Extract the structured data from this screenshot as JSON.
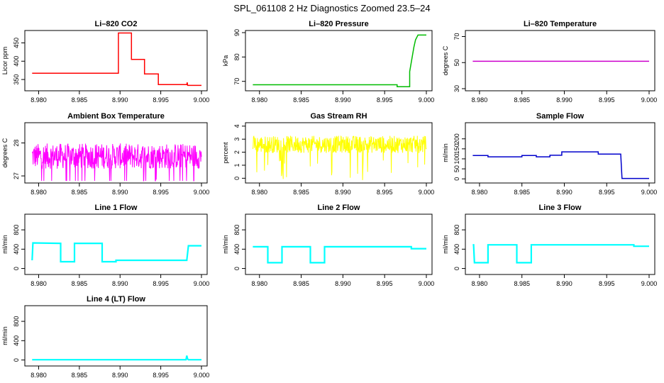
{
  "figure_title": "SPL_061108  2 Hz Diagnostics Zoomed 23.5–24",
  "chart_data": [
    {
      "type": "line",
      "title": "Li–820 CO2",
      "xlabel": "",
      "ylabel": "Licor ppm",
      "xlim": [
        8.979,
        9.0
      ],
      "ylim": [
        325,
        478
      ],
      "x_ticks": [
        "8.980",
        "8.985",
        "8.990",
        "8.995",
        "9.000"
      ],
      "y_ticks": [
        350,
        400,
        450
      ],
      "color": "#ff0000",
      "noise": 0,
      "series": [
        {
          "x": [
            8.9792,
            8.9898,
            8.9898,
            8.9914,
            8.9914,
            8.993,
            8.993,
            8.9947,
            8.9947,
            8.9982,
            8.99825,
            8.9983,
            9.0
          ],
          "y": [
            367,
            367,
            477,
            477,
            405,
            405,
            365,
            365,
            336,
            336,
            342,
            334,
            334
          ]
        }
      ]
    },
    {
      "type": "line",
      "title": "Li–820 Pressure",
      "xlabel": "",
      "ylabel": "kPa",
      "xlim": [
        8.979,
        9.0
      ],
      "ylim": [
        67,
        90
      ],
      "x_ticks": [
        "8.980",
        "8.985",
        "8.990",
        "8.995",
        "9.000"
      ],
      "y_ticks": [
        70,
        80,
        90
      ],
      "color": "#00bb00",
      "noise": 0,
      "series": [
        {
          "x": [
            8.9792,
            8.9965,
            8.9965,
            8.998,
            8.998,
            8.9985,
            8.9987,
            8.999,
            9.0
          ],
          "y": [
            68.6,
            68.6,
            67.8,
            67.8,
            74,
            84,
            87,
            89,
            89
          ]
        }
      ]
    },
    {
      "type": "line",
      "title": "Li–820 Temperature",
      "xlabel": "",
      "ylabel": "degrees C",
      "xlim": [
        8.979,
        9.0
      ],
      "ylim": [
        30,
        73
      ],
      "x_ticks": [
        "8.980",
        "8.985",
        "8.990",
        "8.995",
        "9.000"
      ],
      "y_ticks": [
        30,
        50,
        70
      ],
      "color": "#cc00cc",
      "noise": 0,
      "series": [
        {
          "x": [
            8.9792,
            9.0
          ],
          "y": [
            51,
            51
          ]
        }
      ]
    },
    {
      "type": "line",
      "title": "Ambient Box Temperature",
      "xlabel": "",
      "ylabel": "degrees C",
      "xlim": [
        8.979,
        9.0
      ],
      "ylim": [
        26.85,
        28.55
      ],
      "x_ticks": [
        "8.980",
        "8.985",
        "8.990",
        "8.995",
        "9.000"
      ],
      "y_ticks": [
        27.0,
        28.0
      ],
      "color": "#ff00ff",
      "noise": 0.7,
      "series": [
        {
          "x": [
            8.9792,
            9.0
          ],
          "y": [
            27.6,
            27.6
          ]
        }
      ]
    },
    {
      "type": "line",
      "title": "Gas Stream RH",
      "xlabel": "",
      "ylabel": "percent",
      "xlim": [
        8.979,
        9.0
      ],
      "ylim": [
        -0.2,
        4.1
      ],
      "x_ticks": [
        "8.980",
        "8.985",
        "8.990",
        "8.995",
        "9.000"
      ],
      "y_ticks": [
        0,
        1,
        2,
        3,
        4
      ],
      "color": "#ffff00",
      "noise": 1.2,
      "series": [
        {
          "x": [
            8.9792,
            9.0
          ],
          "y": [
            2.6,
            2.6
          ]
        }
      ]
    },
    {
      "type": "line",
      "title": "Sample Flow",
      "xlabel": "",
      "ylabel": "ml/min",
      "xlim": [
        8.979,
        9.0
      ],
      "ylim": [
        -10,
        270
      ],
      "x_ticks": [
        "8.980",
        "8.985",
        "8.990",
        "8.995",
        "9.000"
      ],
      "y_ticks": [
        0,
        50,
        100,
        150,
        200
      ],
      "color": "#0000cc",
      "noise": 0,
      "series": [
        {
          "x": [
            8.9792,
            8.981,
            8.981,
            8.985,
            8.985,
            8.9867,
            8.9867,
            8.9883,
            8.9883,
            8.9897,
            8.9897,
            8.994,
            8.994,
            8.99665,
            8.9968,
            9.0
          ],
          "y": [
            117,
            117,
            110,
            110,
            117,
            117,
            110,
            110,
            118,
            118,
            135,
            135,
            124,
            124,
            2,
            2
          ]
        }
      ]
    },
    {
      "type": "line",
      "title": "Line 1 Flow",
      "xlabel": "",
      "ylabel": "ml/min",
      "xlim": [
        8.979,
        9.0
      ],
      "ylim": [
        -80,
        1080
      ],
      "x_ticks": [
        "8.980",
        "8.985",
        "8.990",
        "8.995",
        "9.000"
      ],
      "y_ticks": [
        0,
        400,
        800
      ],
      "color": "#00ffff",
      "noise": 0,
      "series": [
        {
          "x": [
            8.9792,
            8.9793,
            8.9827,
            8.9827,
            8.9844,
            8.9844,
            8.9878,
            8.9878,
            8.9895,
            8.9895,
            8.9982,
            8.9984,
            9.0
          ],
          "y": [
            170,
            530,
            520,
            140,
            140,
            520,
            520,
            140,
            140,
            170,
            170,
            470,
            470
          ]
        }
      ]
    },
    {
      "type": "line",
      "title": "Line 2 Flow",
      "xlabel": "",
      "ylabel": "ml/min",
      "xlim": [
        8.979,
        9.0
      ],
      "ylim": [
        -80,
        1080
      ],
      "x_ticks": [
        "8.980",
        "8.985",
        "8.990",
        "8.995",
        "9.000"
      ],
      "y_ticks": [
        0,
        400,
        800
      ],
      "color": "#00ffff",
      "noise": 0,
      "series": [
        {
          "x": [
            8.9792,
            8.981,
            8.981,
            8.9827,
            8.9827,
            8.9861,
            8.9861,
            8.9878,
            8.9878,
            8.9982,
            8.9982,
            9.0
          ],
          "y": [
            450,
            450,
            120,
            120,
            450,
            450,
            120,
            120,
            450,
            450,
            410,
            410
          ]
        }
      ]
    },
    {
      "type": "line",
      "title": "Line 3 Flow",
      "xlabel": "",
      "ylabel": "ml/min",
      "xlim": [
        8.979,
        9.0
      ],
      "ylim": [
        -80,
        1080
      ],
      "x_ticks": [
        "8.980",
        "8.985",
        "8.990",
        "8.995",
        "9.000"
      ],
      "y_ticks": [
        0,
        400,
        800
      ],
      "color": "#00ffff",
      "noise": 0,
      "series": [
        {
          "x": [
            8.9792,
            8.9793,
            8.9794,
            8.981,
            8.981,
            8.9844,
            8.9844,
            8.9861,
            8.9861,
            8.9982,
            8.9982,
            9.0
          ],
          "y": [
            490,
            490,
            120,
            120,
            490,
            490,
            120,
            120,
            490,
            490,
            460,
            460
          ]
        }
      ]
    },
    {
      "type": "line",
      "title": "Line 4 (LT) Flow",
      "xlabel": "",
      "ylabel": "ml/min",
      "xlim": [
        8.979,
        9.0
      ],
      "ylim": [
        -80,
        1080
      ],
      "x_ticks": [
        "8.980",
        "8.985",
        "8.990",
        "8.995",
        "9.000"
      ],
      "y_ticks": [
        0,
        400,
        800
      ],
      "color": "#00ffff",
      "noise": 0,
      "series": [
        {
          "x": [
            8.9792,
            8.9981,
            8.9982,
            8.9983,
            8.9984,
            9.0
          ],
          "y": [
            5,
            5,
            90,
            20,
            5,
            5
          ]
        }
      ]
    }
  ]
}
